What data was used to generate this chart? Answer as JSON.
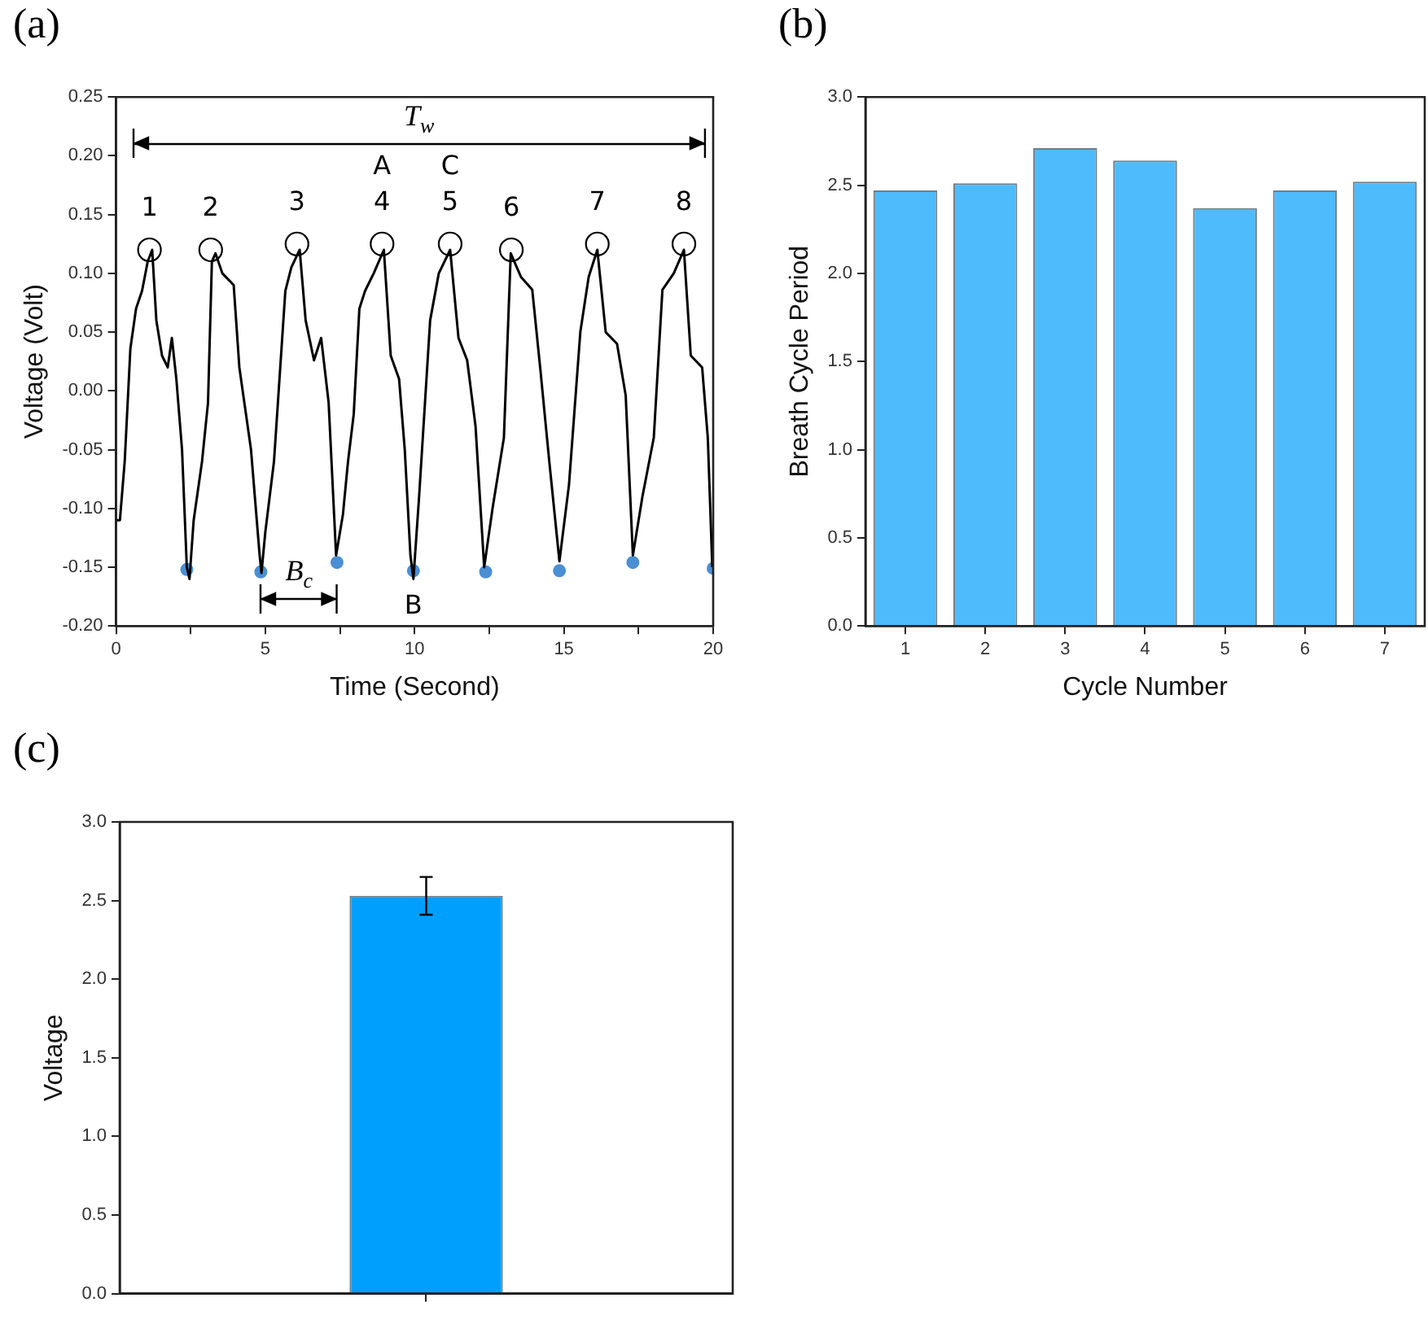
{
  "chart_data": [
    {
      "type": "line",
      "title": "(a)",
      "xlabel": "Time (Second)",
      "ylabel": "Voltage (Volt)",
      "xlim": [
        0,
        20
      ],
      "ylim": [
        -0.2,
        0.25
      ],
      "xticks": [
        0,
        {
          "value": 2.5,
          "label": null
        },
        5,
        {
          "value": 7.5,
          "label": null
        },
        10,
        {
          "value": 12.5,
          "label": null
        },
        15,
        {
          "value": 17.5,
          "label": null
        },
        20
      ],
      "yticks": [
        {
          "value": -0.2,
          "label": "-0.20"
        },
        {
          "value": -0.15,
          "label": "-0.15"
        },
        {
          "value": -0.1,
          "label": "-0.10"
        },
        {
          "value": -0.05,
          "label": "-0.05"
        },
        {
          "value": 0,
          "label": "0.00"
        },
        {
          "value": 0.05,
          "label": "0.05"
        },
        {
          "value": 0.1,
          "label": "0.10"
        },
        {
          "value": 0.15,
          "label": "0.15"
        },
        {
          "value": 0.2,
          "label": "0.20"
        },
        {
          "value": 0.25,
          "label": "0.25"
        }
      ],
      "series": [
        {
          "color": "#000000",
          "marker": "none",
          "x": [
            0,
            0.13,
            0.29,
            0.48,
            0.67,
            0.87,
            1.06,
            1.21,
            1.35,
            1.54,
            1.73,
            1.87,
            2.02,
            2.21,
            2.37,
            2.46,
            2.6,
            2.88,
            3.08,
            3.21,
            3.33,
            3.56,
            3.94,
            4.13,
            4.52,
            4.81,
            4.87,
            5.0,
            5.29,
            5.67,
            5.87,
            6.15,
            6.35,
            6.63,
            6.87,
            7.12,
            7.37,
            7.6,
            7.77,
            7.96,
            8.15,
            8.34,
            8.63,
            8.97,
            9.2,
            9.48,
            9.67,
            9.86,
            9.96,
            10.15,
            10.52,
            10.81,
            11.19,
            11.47,
            11.76,
            12.04,
            12.33,
            12.61,
            12.99,
            13.22,
            13.56,
            13.94,
            14.22,
            14.51,
            14.85,
            15.17,
            15.55,
            15.83,
            16.12,
            16.4,
            16.78,
            17.07,
            17.31,
            17.63,
            18.01,
            18.3,
            18.68,
            19.02,
            19.25,
            19.63,
            19.82,
            19.97
          ],
          "values": [
            -0.11,
            -0.11,
            -0.06,
            0.036,
            0.07,
            0.085,
            0.11,
            0.12,
            0.06,
            0.03,
            0.02,
            0.045,
            0.01,
            -0.05,
            -0.15,
            -0.16,
            -0.11,
            -0.06,
            -0.01,
            0.11,
            0.117,
            0.1,
            0.09,
            0.02,
            -0.05,
            -0.14,
            -0.155,
            -0.12,
            -0.06,
            0.085,
            0.105,
            0.12,
            0.06,
            0.026,
            0.045,
            -0.01,
            -0.14,
            -0.105,
            -0.06,
            -0.02,
            0.07,
            0.085,
            0.1,
            0.12,
            0.03,
            0.01,
            -0.05,
            -0.14,
            -0.16,
            -0.09,
            0.06,
            0.1,
            0.12,
            0.045,
            0.026,
            -0.03,
            -0.15,
            -0.1,
            -0.04,
            0.117,
            0.097,
            0.086,
            0.016,
            -0.06,
            -0.145,
            -0.08,
            0.05,
            0.097,
            0.12,
            0.05,
            0.04,
            -0.004,
            -0.14,
            -0.09,
            -0.04,
            0.086,
            0.1,
            0.12,
            0.03,
            0.02,
            -0.04,
            -0.15
          ]
        },
        {
          "type": "scatter",
          "color": "#4a8fd4",
          "marker": "circle",
          "x": [
            2.37,
            4.85,
            7.4,
            9.96,
            12.38,
            14.85,
            17.31,
            20.0
          ],
          "values": [
            -0.152,
            -0.154,
            -0.146,
            -0.153,
            -0.154,
            -0.153,
            -0.146,
            -0.151
          ]
        },
        {
          "type": "scatter",
          "color": "#000000",
          "marker": "circle",
          "x": [
            1.12,
            3.17,
            6.06,
            8.91,
            11.19,
            13.24,
            16.12,
            19.02
          ],
          "values": [
            0.12,
            0.12,
            0.125,
            0.125,
            0.125,
            0.12,
            0.125,
            0.125
          ]
        },
        {
          "color": "#000000",
          "marker": "none",
          "x": [
            0.58,
            19.72
          ],
          "values": [
            0.21,
            0.21
          ]
        },
        {
          "color": "#000000",
          "marker": "none",
          "x": [
            4.85,
            7.4
          ],
          "values": [
            -0.177,
            -0.177
          ]
        }
      ],
      "annotations": [
        {
          "text": "1",
          "x": 1.12,
          "y": 0.12
        },
        {
          "text": "2",
          "x": 3.17,
          "y": 0.12
        },
        {
          "text": "3",
          "x": 6.06,
          "y": 0.125
        },
        {
          "text": "4",
          "x": 8.91,
          "y": 0.125
        },
        {
          "text": "5",
          "x": 11.19,
          "y": 0.125
        },
        {
          "text": "6",
          "x": 13.24,
          "y": 0.12
        },
        {
          "text": "7",
          "x": 16.12,
          "y": 0.125
        },
        {
          "text": "8",
          "x": 19.02,
          "y": 0.125
        },
        {
          "text": "A",
          "x": 8.91,
          "y": 0.125
        },
        {
          "text": "C",
          "x": 11.19,
          "y": 0.125
        },
        {
          "text": "B",
          "x": 9.96,
          "y": -0.153
        },
        {
          "text": "T$_{w}$",
          "x": 10.15,
          "y": 0.21
        },
        {
          "text": "B$_{c}$",
          "x": 6.125,
          "y": -0.177
        }
      ],
      "grid": false,
      "legend": false
    },
    {
      "type": "bar",
      "title": "(b)",
      "xlabel": "Cycle Number",
      "ylabel": "Breath Cycle Period",
      "categories": [
        "1",
        "2",
        "3",
        "4",
        "5",
        "6",
        "7"
      ],
      "values": [
        2.47,
        2.51,
        2.71,
        2.64,
        2.37,
        2.47,
        2.52
      ],
      "color": "#4dbbfc",
      "ylim": [
        0,
        3
      ],
      "yticks": [
        {
          "value": 0,
          "label": "0.0"
        },
        {
          "value": 0.5,
          "label": "0.5"
        },
        {
          "value": 1,
          "label": "1.0"
        },
        {
          "value": 1.5,
          "label": "1.5"
        },
        {
          "value": 2,
          "label": "2.0"
        },
        {
          "value": 2.5,
          "label": "2.5"
        },
        {
          "value": 3,
          "label": "3.0"
        }
      ],
      "grid": false,
      "legend": false
    },
    {
      "type": "bar",
      "title": "(c)",
      "ylabel": "Voltage",
      "categories": [
        null
      ],
      "values": [
        2.53
      ],
      "errors": [
        0.12
      ],
      "color": "#009ffd",
      "ylim": [
        0,
        3
      ],
      "yticks": [
        {
          "value": 0,
          "label": "0.0"
        },
        {
          "value": 0.5,
          "label": "0.5"
        },
        {
          "value": 1,
          "label": "1.0"
        },
        {
          "value": 1.5,
          "label": "1.5"
        },
        {
          "value": 2,
          "label": "2.0"
        },
        {
          "value": 2.5,
          "label": "2.5"
        },
        {
          "value": 3,
          "label": "3.0"
        }
      ],
      "grid": false,
      "legend": false
    }
  ]
}
